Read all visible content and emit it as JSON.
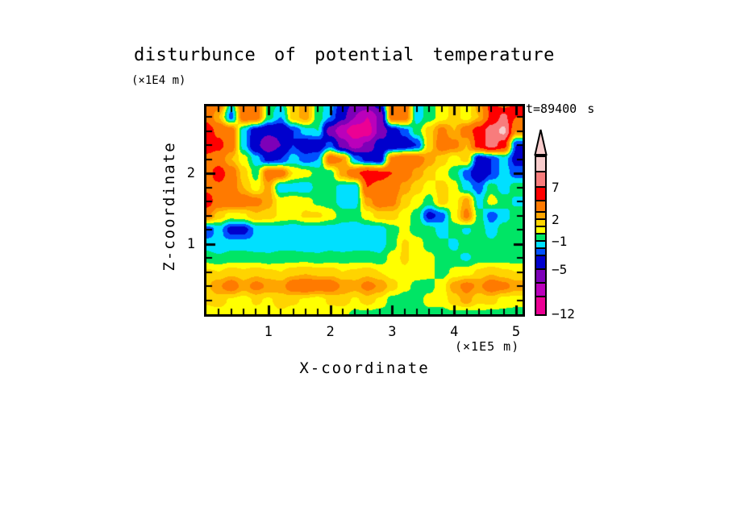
{
  "title": "disturbunce of potential temperature",
  "time_label": "t=89400 s",
  "x_axis": {
    "label": "X-coordinate",
    "unit": "(×1E5 m)",
    "ticks": [
      {
        "label": "1",
        "value": 1
      },
      {
        "label": "2",
        "value": 2
      },
      {
        "label": "3",
        "value": 3
      },
      {
        "label": "4",
        "value": 4
      },
      {
        "label": "5",
        "value": 5
      }
    ],
    "minor_step": 0.2,
    "range": [
      0,
      5.1
    ]
  },
  "y_axis": {
    "label": "Z-coordinate",
    "unit": "(×1E4 m)",
    "ticks": [
      {
        "label": "1",
        "value": 1
      },
      {
        "label": "2",
        "value": 2
      }
    ],
    "minor_step": 0.2,
    "range": [
      0,
      2.95
    ]
  },
  "colorbar": {
    "segments": [
      {
        "color": "#f8cccc",
        "height": 19
      },
      {
        "color": "#f87c7c",
        "height": 19
      },
      {
        "color": "#ff0000",
        "height": 17
      },
      {
        "color": "#ff7a00",
        "height": 14
      },
      {
        "color": "#ffa500",
        "height": 9
      },
      {
        "color": "#ffd400",
        "height": 9
      },
      {
        "color": "#ffff00",
        "height": 9
      },
      {
        "color": "#00e565",
        "height": 9
      },
      {
        "color": "#00e0ff",
        "height": 9
      },
      {
        "color": "#0050ff",
        "height": 9
      },
      {
        "color": "#0000cd",
        "height": 17
      },
      {
        "color": "#7d00b8",
        "height": 17
      },
      {
        "color": "#bb00bb",
        "height": 17
      },
      {
        "color": "#ec0094",
        "height": 21
      }
    ],
    "labels": [
      {
        "text": "7",
        "boundary": 2
      },
      {
        "text": "2",
        "boundary": 5
      },
      {
        "text": "−1",
        "boundary": 8
      },
      {
        "text": "−5",
        "boundary": 11
      },
      {
        "text": "−12",
        "boundary": 14
      }
    ],
    "arrow_color": "#f8cccc"
  },
  "chart_data": {
    "type": "heatmap",
    "title": "disturbunce of potential temperature",
    "xlabel": "X-coordinate (×1E5 m)",
    "ylabel": "Z-coordinate (×1E4 m)",
    "time": "t=89400 s",
    "x_range": [
      0,
      5.1
    ],
    "z_range": [
      0,
      2.95
    ],
    "levels": [
      -12,
      -9,
      -7,
      -5,
      -3,
      -2,
      -1,
      0,
      1,
      2,
      3,
      5,
      7,
      9,
      12
    ],
    "colors": [
      "#ec0094",
      "#bb00bb",
      "#7d00b8",
      "#0000cd",
      "#0050ff",
      "#00e0ff",
      "#00e565",
      "#ffff00",
      "#ffd400",
      "#ffa500",
      "#ff7a00",
      "#ff0000",
      "#f87c7c",
      "#f8cccc"
    ],
    "labeled_levels": [
      7,
      2,
      -1,
      -5,
      -12
    ],
    "grid": {
      "x0": 0,
      "dx": 0.2,
      "z_top": 3.0,
      "dz": 0.2,
      "cols": 26,
      "rows": 16,
      "values": [
        [
          5,
          4,
          -1,
          4.5,
          4,
          -0.5,
          -1,
          1.5,
          2.5,
          -0.5,
          -1.5,
          -4,
          -5.5,
          -5,
          -4,
          4,
          4.5,
          -1.5,
          -0.5,
          0.5,
          1.5,
          0.5,
          2.5,
          5.5,
          4,
          5.5
        ],
        [
          4.5,
          2,
          -2.5,
          4,
          4,
          -0.5,
          -2,
          1.5,
          2.5,
          -0.5,
          -2,
          -4.5,
          -7,
          -9,
          -6.5,
          4,
          4,
          -1.5,
          -0.5,
          0.5,
          1.5,
          0.5,
          2,
          5.5,
          7.5,
          5
        ],
        [
          6,
          4.5,
          4,
          -1.5,
          -4,
          -4.5,
          -4.5,
          -3,
          -1.5,
          -1,
          -6,
          -8.5,
          -10.5,
          -10,
          -6.5,
          -4,
          -2.5,
          -0.5,
          1.5,
          3.5,
          2,
          4,
          6,
          8,
          9.5,
          3
        ],
        [
          6,
          5.5,
          4,
          -1.5,
          -4.5,
          -6.5,
          -5,
          -3,
          -4,
          -4,
          -2.5,
          -6,
          -8,
          -6.5,
          -4,
          -4.5,
          -4,
          -3,
          1.5,
          4,
          3.5,
          2,
          6,
          8,
          6,
          -3
        ],
        [
          4.5,
          4,
          2,
          0.5,
          -1.5,
          -3.5,
          -3,
          -1.5,
          -2.5,
          -2,
          4,
          3,
          -2,
          -3.5,
          -4,
          3.5,
          4.5,
          4,
          2.5,
          1.5,
          0.5,
          1.5,
          -4,
          -3,
          -1.5,
          -3.5
        ],
        [
          4,
          6,
          4,
          1.5,
          -0.5,
          4,
          4,
          1,
          0.5,
          -0.5,
          -0.5,
          2.5,
          4.5,
          6,
          5.5,
          5,
          4,
          2.5,
          1.5,
          0.5,
          -0.5,
          -2.5,
          -4.5,
          -3,
          -1.5,
          -2.5
        ],
        [
          4.5,
          4.5,
          4,
          2,
          0.5,
          2.5,
          -1.8,
          -1.5,
          -1.8,
          -0.5,
          -0.5,
          -1.5,
          -1.8,
          5,
          4.5,
          4,
          2.5,
          1.5,
          0.5,
          1.5,
          0.5,
          -1.5,
          -2.5,
          -0.5,
          -1.5,
          -0.5
        ],
        [
          6,
          4,
          4.5,
          4,
          3.5,
          2.5,
          0.5,
          0.8,
          0.5,
          -0.3,
          -0.5,
          -1.5,
          -1.5,
          2.5,
          4,
          3.5,
          1.5,
          0.5,
          -0.5,
          1.5,
          0.5,
          2.5,
          -1.5,
          0.5,
          -0.5,
          -1.2
        ],
        [
          3.5,
          1.5,
          0.5,
          0.8,
          1.8,
          1.5,
          0.8,
          0.5,
          1.2,
          1.2,
          0.5,
          -0.5,
          -0.5,
          0.5,
          1.5,
          1.5,
          0.5,
          -0.5,
          -3.5,
          -2.5,
          0.5,
          3.5,
          -0.5,
          -2.5,
          -1.5,
          -0.5
        ],
        [
          -3,
          -1.5,
          -3.5,
          -3.5,
          -1.8,
          -1.5,
          -1.5,
          -1.8,
          -1.5,
          -1.5,
          -1.5,
          -1.5,
          -1.8,
          -1.5,
          -1.5,
          -0.5,
          0.3,
          -0.5,
          -0.5,
          -1.5,
          -0.5,
          -1.2,
          -0.5,
          -1.5,
          -0.5,
          -0.5
        ],
        [
          -1.5,
          -1.8,
          -1.5,
          -1.5,
          -1.8,
          -1.5,
          -1.5,
          -1.5,
          -1.8,
          -1.5,
          -1.5,
          -1.8,
          -1.5,
          -1.5,
          -1.5,
          -0.5,
          1.2,
          0.5,
          -0.5,
          -0.8,
          -1.2,
          -0.5,
          -0.5,
          -0.8,
          -0.5,
          -0.5
        ],
        [
          -0.5,
          -0.8,
          -0.5,
          -0.5,
          -0.5,
          -0.8,
          -0.5,
          -0.5,
          -0.5,
          -0.8,
          -0.5,
          -0.5,
          -0.5,
          -0.5,
          -0.8,
          0.5,
          1.2,
          0.5,
          0.3,
          -0.5,
          -0.8,
          -1.2,
          -0.5,
          -0.8,
          -0.5,
          -0.5
        ],
        [
          1.2,
          1,
          1.5,
          1.2,
          1.5,
          1.2,
          1,
          1.5,
          1.8,
          1.5,
          1.5,
          1,
          1.2,
          1.5,
          1,
          0.5,
          0.8,
          0.5,
          0.3,
          -0.5,
          0.3,
          0.5,
          1.2,
          1.8,
          1.2,
          1
        ],
        [
          1.8,
          2.8,
          4,
          2.5,
          3.5,
          2.8,
          2.5,
          4,
          4.5,
          4,
          4,
          2.8,
          2.5,
          3.5,
          2.8,
          1.5,
          0.3,
          -0.3,
          -0.3,
          0.5,
          2.5,
          3.5,
          2.8,
          4,
          3.5,
          2.5
        ],
        [
          1.2,
          1.5,
          0.8,
          0.5,
          1.2,
          0.8,
          1.5,
          1.2,
          0.8,
          0.5,
          1.2,
          1.5,
          0.8,
          1.5,
          0.8,
          -0.5,
          -0.5,
          -0.3,
          0.3,
          0.5,
          1.5,
          2.5,
          1.2,
          1.5,
          0.5,
          0.5
        ],
        [
          0.5,
          0.5,
          0.5,
          0.8,
          0.5,
          0.5,
          0.8,
          0.5,
          0.5,
          0.5,
          0.5,
          0.3,
          -0.3,
          -0.3,
          -0.5,
          -0.5,
          -0.3,
          -0.5,
          -0.3,
          -0.5,
          -0.3,
          -0.5,
          -0.3,
          -0.5,
          -0.3,
          -0.5
        ]
      ]
    }
  }
}
